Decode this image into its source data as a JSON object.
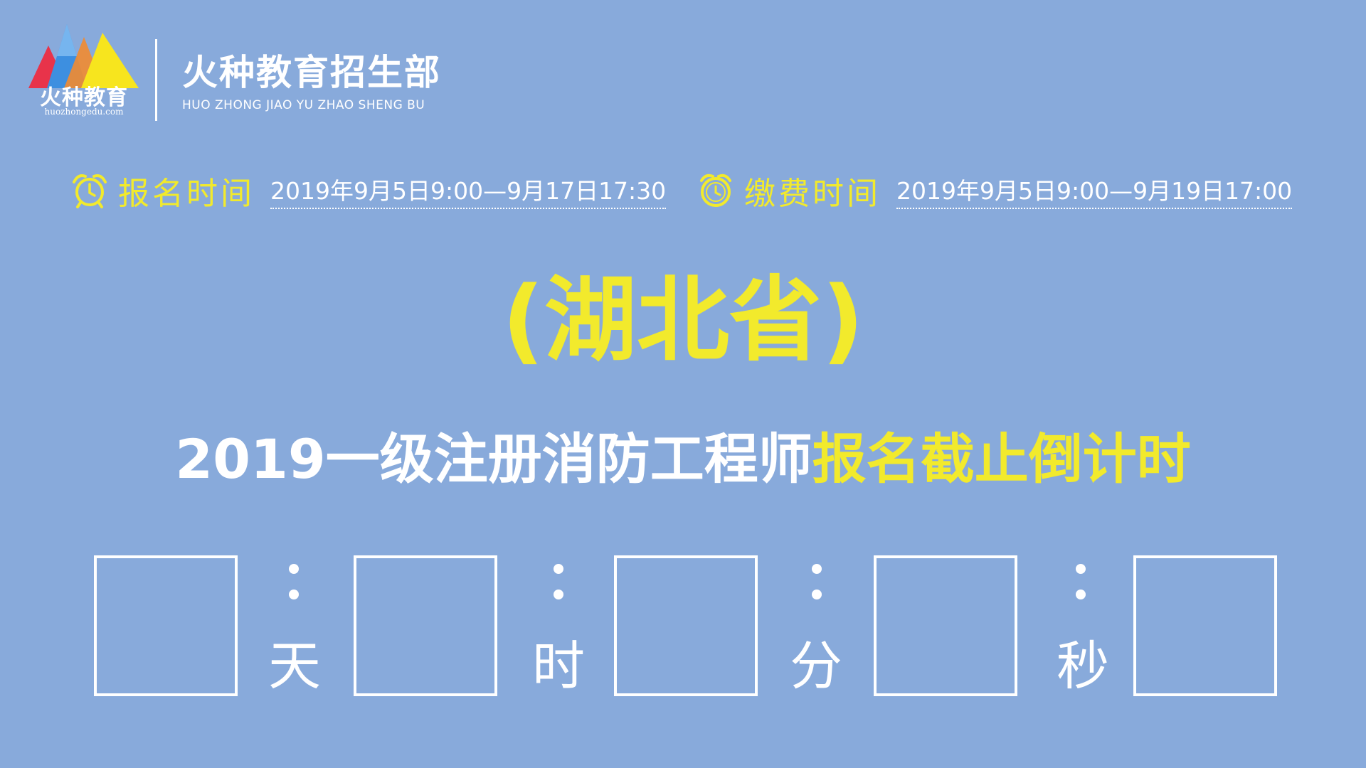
{
  "logo": {
    "name": "火种教育",
    "url": "huozhongedu.com",
    "colors": [
      "#e8334a",
      "#f28b30",
      "#3d8fe0",
      "#f7e51e"
    ]
  },
  "brand": {
    "title": "火种教育招生部",
    "subtitle": "HUO ZHONG JIAO YU ZHAO SHENG BU"
  },
  "registration": {
    "icon": "alarm-clock-icon",
    "label": "报名时间",
    "value": "2019年9月5日9:00—9月17日17:30"
  },
  "payment": {
    "icon": "alarm-clock-icon",
    "label": "缴费时间",
    "value": "2019年9月5日9:00—9月19日17:00"
  },
  "province": "(湖北省)",
  "headline": {
    "white_part": "2019一级注册消防工程师",
    "yellow_part": "报名截止倒计时"
  },
  "countdown": {
    "units": [
      "天",
      "时",
      "分",
      "秒"
    ],
    "values": [
      "",
      "",
      "",
      "",
      ""
    ]
  },
  "colors": {
    "background": "#88aadb",
    "accent_yellow": "#f2ea2c",
    "text_white": "#ffffff"
  }
}
